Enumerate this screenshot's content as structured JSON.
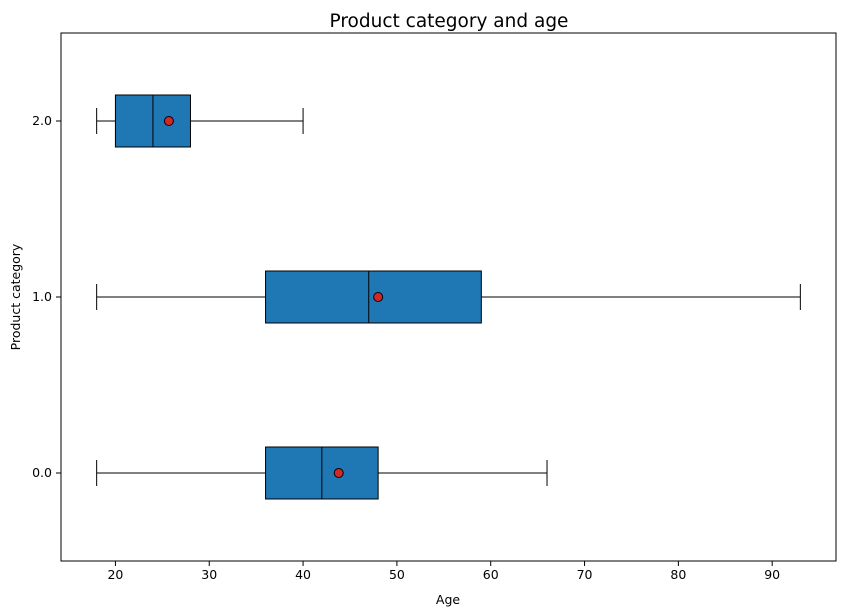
{
  "chart_data": {
    "type": "boxplot",
    "orientation": "horizontal",
    "title": "Product category and age",
    "xlabel": "Age",
    "ylabel": "Product category",
    "xlim": [
      14.2,
      96.8
    ],
    "x_ticks": [
      20,
      30,
      40,
      50,
      60,
      70,
      80,
      90
    ],
    "grid": false,
    "box_color": "#1f77b4",
    "mean_marker_color": "#d62728",
    "categories": [
      "0.0",
      "1.0",
      "2.0"
    ],
    "boxes": [
      {
        "category": "0.0",
        "whisker_low": 18,
        "q1": 36,
        "median": 42,
        "q3": 48,
        "whisker_high": 66,
        "mean": 43.8
      },
      {
        "category": "1.0",
        "whisker_low": 18,
        "q1": 36,
        "median": 47,
        "q3": 59,
        "whisker_high": 93,
        "mean": 48.0
      },
      {
        "category": "2.0",
        "whisker_low": 18,
        "q1": 20,
        "median": 24,
        "q3": 28,
        "whisker_high": 40,
        "mean": 25.7
      }
    ]
  }
}
